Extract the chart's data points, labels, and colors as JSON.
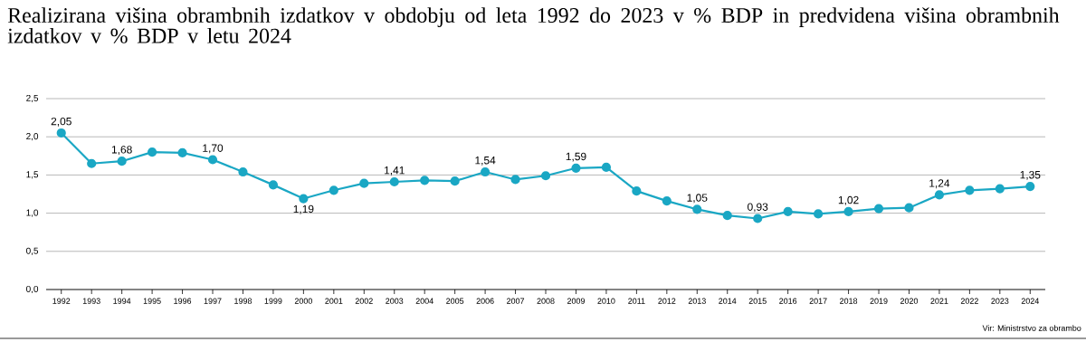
{
  "chart_data": {
    "type": "line",
    "title": "Realizirana višina obrambnih izdatkov v obdobju od leta 1992 do 2023 v % BDP in predvidena višina obrambnih izdatkov v % BDP v letu 2024",
    "categories": [
      "1992",
      "1993",
      "1994",
      "1995",
      "1996",
      "1997",
      "1998",
      "1999",
      "2000",
      "2001",
      "2002",
      "2003",
      "2004",
      "2005",
      "2006",
      "2007",
      "2008",
      "2009",
      "2010",
      "2011",
      "2012",
      "2013",
      "2014",
      "2015",
      "2016",
      "2017",
      "2018",
      "2019",
      "2020",
      "2021",
      "2022",
      "2023",
      "2024"
    ],
    "series": [
      {
        "color": "#1aa7c4",
        "values": [
          2.05,
          1.65,
          1.68,
          1.8,
          1.79,
          1.7,
          1.54,
          1.37,
          1.19,
          1.3,
          1.39,
          1.41,
          1.43,
          1.42,
          1.54,
          1.44,
          1.49,
          1.59,
          1.6,
          1.29,
          1.16,
          1.05,
          0.97,
          0.93,
          1.02,
          0.99,
          1.02,
          1.06,
          1.07,
          1.24,
          1.3,
          1.32,
          1.35
        ],
        "value_labels": [
          "2,05",
          null,
          "1,68",
          null,
          null,
          "1,70",
          null,
          null,
          "1,19",
          null,
          null,
          "1,41",
          null,
          null,
          "1,54",
          null,
          null,
          "1,59",
          null,
          null,
          null,
          "1,05",
          null,
          "0,93",
          null,
          null,
          "1,02",
          null,
          null,
          "1,24",
          null,
          null,
          "1,35"
        ]
      }
    ],
    "ylim": [
      0,
      2.5
    ],
    "yticks": [
      {
        "value": 0,
        "label": "0,0"
      },
      {
        "value": 0.5,
        "label": "0,5"
      },
      {
        "value": 1,
        "label": "1,0"
      },
      {
        "value": 1.5,
        "label": "1,5"
      },
      {
        "value": 2,
        "label": "2,0"
      },
      {
        "value": 2.5,
        "label": "2,5"
      }
    ],
    "grid": "y",
    "marker": "circle",
    "line_style": "solid",
    "annotations": [
      "Vir: Ministrstvo za obrambo"
    ]
  }
}
